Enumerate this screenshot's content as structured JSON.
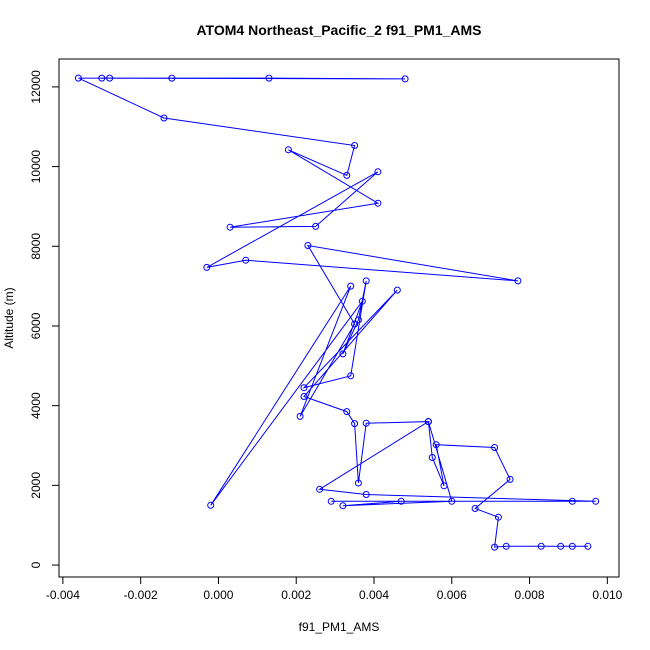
{
  "chart_data": {
    "type": "line",
    "title": "ATOM4 Northeast_Pacific_2 f91_PM1_AMS",
    "xlabel": "f91_PM1_AMS",
    "ylabel": "Altitude (m)",
    "xlim": [
      -0.0041,
      0.0103
    ],
    "ylim": [
      -300,
      12700
    ],
    "x_ticks": [
      {
        "value": -0.004,
        "label": "-0.004"
      },
      {
        "value": -0.002,
        "label": "-0.002"
      },
      {
        "value": 0.0,
        "label": "0.000"
      },
      {
        "value": 0.002,
        "label": "0.002"
      },
      {
        "value": 0.004,
        "label": "0.004"
      },
      {
        "value": 0.006,
        "label": "0.006"
      },
      {
        "value": 0.008,
        "label": "0.008"
      },
      {
        "value": 0.01,
        "label": "0.010"
      }
    ],
    "y_ticks": [
      {
        "value": 0,
        "label": "0"
      },
      {
        "value": 2000,
        "label": "2000"
      },
      {
        "value": 4000,
        "label": "4000"
      },
      {
        "value": 6000,
        "label": "6000"
      },
      {
        "value": 8000,
        "label": "8000"
      },
      {
        "value": 10000,
        "label": "10000"
      },
      {
        "value": 12000,
        "label": "12000"
      }
    ],
    "grid": false,
    "legend": "none",
    "color": "#0000ff",
    "marker": "open-circle",
    "series": [
      {
        "x": [
          0.0095,
          0.0091,
          0.0088,
          0.0083,
          0.0074,
          0.0071,
          0.0072,
          0.0066,
          0.0075,
          0.0071,
          0.0056,
          0.0058,
          0.0055,
          0.0054,
          0.006,
          0.0032,
          0.0047,
          0.0091,
          0.0029,
          0.0097,
          0.0038,
          0.0026,
          0.0054,
          0.0038,
          0.0036,
          0.0035,
          0.0033,
          0.0022,
          0.0046,
          0.0022,
          0.0034,
          0.0038,
          0.0036,
          0.0032,
          0.0037,
          -0.0002,
          0.0034,
          0.0021,
          0.0035,
          0.0023,
          0.0077,
          0.0007,
          -0.0003,
          0.0041,
          0.0025,
          0.0003,
          0.0041,
          0.0018,
          0.0033,
          0.0035,
          -0.0014,
          -0.0036,
          0.0048,
          0.0013,
          -0.0012,
          -0.0028,
          -0.003
        ],
        "y": [
          470,
          470,
          470,
          470,
          470,
          450,
          1200,
          1420,
          2150,
          2950,
          3020,
          1990,
          2700,
          3600,
          1600,
          1490,
          1600,
          1600,
          1600,
          1600,
          1770,
          1900,
          3600,
          3560,
          2060,
          3550,
          3850,
          4230,
          6900,
          4450,
          4750,
          7130,
          6150,
          5300,
          6620,
          1500,
          7000,
          3730,
          6050,
          8020,
          7130,
          7650,
          7470,
          9870,
          8500,
          8480,
          9080,
          10420,
          9780,
          10530,
          11220,
          12220,
          12200,
          12220,
          12220,
          12220,
          12220
        ]
      }
    ]
  }
}
